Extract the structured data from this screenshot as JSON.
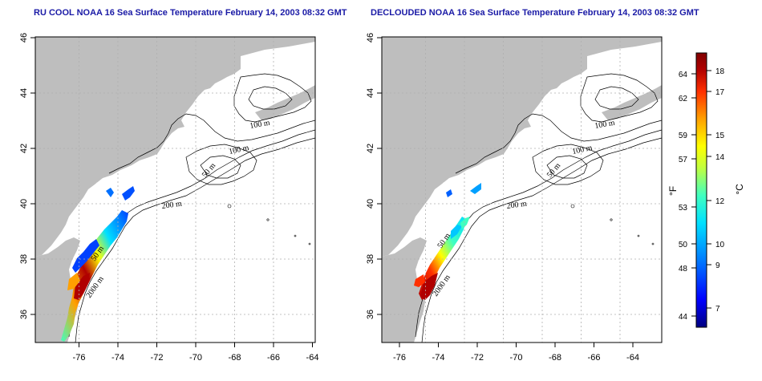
{
  "panels": [
    {
      "title": "RU COOL NOAA 16 Sea Surface Temperature February 14, 2003 08:32 GMT",
      "contour_labels": [
        "100 m",
        "100 m",
        "50 m",
        "200 m",
        "50 m",
        "2000 m"
      ]
    },
    {
      "title": "DECLOUDED NOAA 16 Sea Surface Temperature February 14, 2003 08:32 GMT",
      "contour_labels": [
        "100 m",
        "100 m",
        "50 m",
        "200 m",
        "50 m",
        "2000 m"
      ]
    }
  ],
  "axes": {
    "lon_ticks": [
      "-76",
      "-74",
      "-72",
      "-70",
      "-68",
      "-66",
      "-64"
    ],
    "lat_ticks": [
      "36",
      "38",
      "40",
      "42",
      "44",
      "46"
    ]
  },
  "colorbar": {
    "fahrenheit_ticks": [
      "64",
      "62",
      "59",
      "57",
      "53",
      "50",
      "48",
      "44"
    ],
    "celsius_ticks": [
      "18",
      "17",
      "15",
      "14",
      "12",
      "10",
      "9",
      "7"
    ],
    "fahrenheit_unit": "°F",
    "celsius_unit": "°C",
    "colors": [
      "#000080",
      "#0000ff",
      "#0080ff",
      "#00e0ff",
      "#40ffc0",
      "#c0ff40",
      "#ffff00",
      "#ffa000",
      "#ff3000",
      "#b00000",
      "#800000"
    ]
  },
  "colors": {
    "land": "#bebebe",
    "title": "#1a1aa6",
    "grid": "#b0b0b0"
  }
}
